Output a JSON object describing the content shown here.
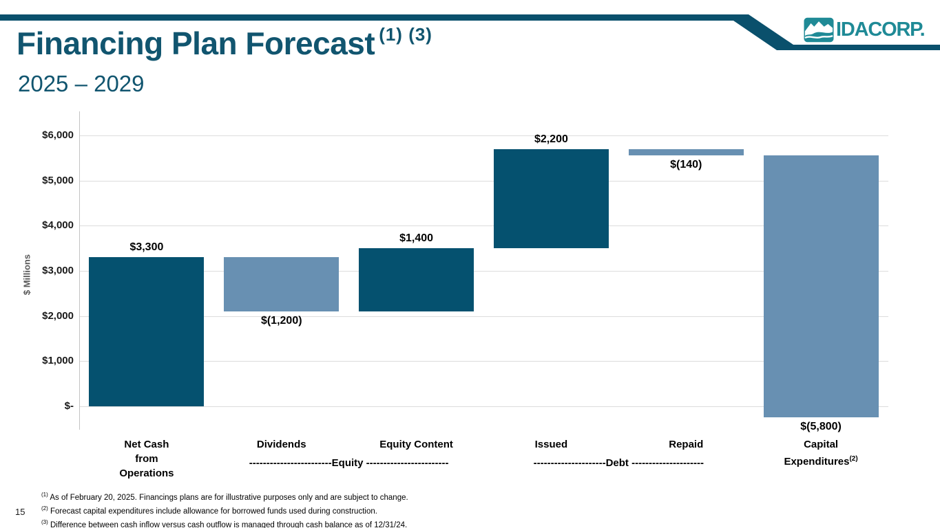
{
  "slide": {
    "title": "Financing Plan Forecast",
    "title_superscript": "(1) (3)",
    "subtitle": "2025 – 2029",
    "page_number": "15"
  },
  "logo": {
    "text": "IDACORP.",
    "icon": "mountain-river-icon"
  },
  "colors": {
    "accent_banner": "#0a506c",
    "title_text": "#11556f",
    "bar_dark": "#05516f",
    "bar_light": "#6890b2",
    "logo_teal": "#1f8a96",
    "gridline": "#dcdcdc"
  },
  "chart_data": {
    "type": "bar",
    "subtype": "waterfall",
    "title": "",
    "xlabel": "",
    "ylabel": "$ Millions",
    "ylim": [
      0,
      6000
    ],
    "grid": true,
    "legend": "none",
    "yticks": [
      {
        "value": 0,
        "label": "$-"
      },
      {
        "value": 1000,
        "label": "$1,000"
      },
      {
        "value": 2000,
        "label": "$2,000"
      },
      {
        "value": 3000,
        "label": "$3,000"
      },
      {
        "value": 4000,
        "label": "$4,000"
      },
      {
        "value": 5000,
        "label": "$5,000"
      },
      {
        "value": 6000,
        "label": "$6,000"
      }
    ],
    "bars": [
      {
        "category_lines": [
          "Net Cash",
          "from",
          "Operations"
        ],
        "value": 3300,
        "value_label": "$3,300",
        "start": 0,
        "end": 3300,
        "color": "dark",
        "label_position": "above"
      },
      {
        "category_lines": [
          "Dividends"
        ],
        "value": -1200,
        "value_label": "$(1,200)",
        "start": 3300,
        "end": 2100,
        "color": "light",
        "label_position": "below"
      },
      {
        "category_lines": [
          "Equity Content"
        ],
        "value": 1400,
        "value_label": "$1,400",
        "start": 2100,
        "end": 3500,
        "color": "dark",
        "label_position": "above"
      },
      {
        "category_lines": [
          "Issued"
        ],
        "value": 2200,
        "value_label": "$2,200",
        "start": 3500,
        "end": 5700,
        "color": "dark",
        "label_position": "above"
      },
      {
        "category_lines": [
          "Repaid"
        ],
        "value": -140,
        "value_label": "$(140)",
        "start": 5700,
        "end": 5560,
        "color": "light",
        "label_position": "below"
      },
      {
        "category_lines": [
          "Capital",
          "Expenditures"
        ],
        "category_superscript": "(2)",
        "value": -5800,
        "value_label": "$(5,800)",
        "start": 5560,
        "end": -240,
        "color": "light",
        "label_position": "below"
      }
    ],
    "group_labels": [
      {
        "label": "------------------------Equity ------------------------",
        "between_bars": [
          1,
          2
        ]
      },
      {
        "label": "---------------------Debt ---------------------",
        "between_bars": [
          3,
          4
        ]
      }
    ]
  },
  "footnotes": [
    {
      "sup": "(1)",
      "text": "As of February 20, 2025. Financings plans are for illustrative purposes only and are subject to change."
    },
    {
      "sup": "(2)",
      "text": "Forecast capital expenditures include allowance for borrowed funds used during construction."
    },
    {
      "sup": "(3)",
      "text": "Difference between cash inflow versus cash outflow is managed through cash balance as of 12/31/24."
    }
  ]
}
